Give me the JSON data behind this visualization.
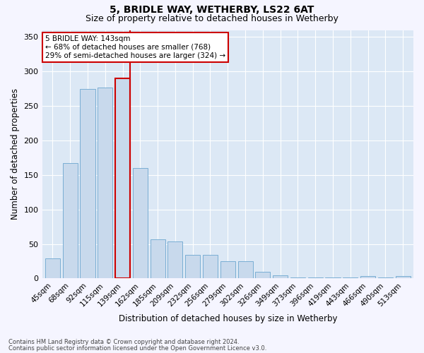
{
  "title": "5, BRIDLE WAY, WETHERBY, LS22 6AT",
  "subtitle": "Size of property relative to detached houses in Wetherby",
  "xlabel": "Distribution of detached houses by size in Wetherby",
  "ylabel": "Number of detached properties",
  "footnote1": "Contains HM Land Registry data © Crown copyright and database right 2024.",
  "footnote2": "Contains public sector information licensed under the Open Government Licence v3.0.",
  "categories": [
    "45sqm",
    "68sqm",
    "92sqm",
    "115sqm",
    "139sqm",
    "162sqm",
    "185sqm",
    "209sqm",
    "232sqm",
    "256sqm",
    "279sqm",
    "302sqm",
    "326sqm",
    "349sqm",
    "373sqm",
    "396sqm",
    "419sqm",
    "443sqm",
    "466sqm",
    "490sqm",
    "513sqm"
  ],
  "values": [
    29,
    167,
    275,
    277,
    290,
    160,
    57,
    54,
    34,
    34,
    25,
    25,
    10,
    5,
    1,
    1,
    1,
    1,
    4,
    1,
    4
  ],
  "bar_color": "#c8d9ec",
  "bar_edge_color": "#7aaed4",
  "highlight_bar_index": 4,
  "vline_color": "#cc0000",
  "annotation_text": "5 BRIDLE WAY: 143sqm\n← 68% of detached houses are smaller (768)\n29% of semi-detached houses are larger (324) →",
  "annotation_box_color": "#ffffff",
  "annotation_box_edge": "#cc0000",
  "ylim": [
    0,
    360
  ],
  "yticks": [
    0,
    50,
    100,
    150,
    200,
    250,
    300,
    350
  ],
  "fig_bg_color": "#f5f5ff",
  "plot_bg_color": "#dce8f5",
  "title_fontsize": 10,
  "subtitle_fontsize": 9,
  "xlabel_fontsize": 8.5,
  "ylabel_fontsize": 8.5,
  "tick_fontsize": 7.5,
  "annot_fontsize": 7.5
}
